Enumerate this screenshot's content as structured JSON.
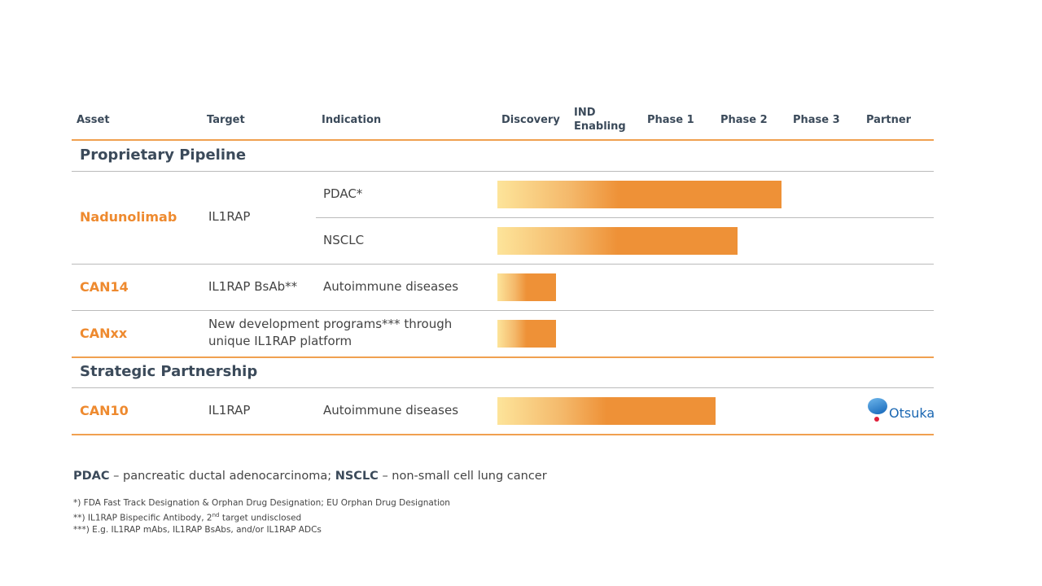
{
  "header": {
    "columns": [
      "Asset",
      "Target",
      "Indication",
      "Discovery",
      "IND Enabling",
      "Phase 1",
      "Phase 2",
      "Phase 3",
      "Partner"
    ]
  },
  "sections": [
    {
      "title": "Proprietary Pipeline",
      "rows": [
        {
          "asset": "Nadunolimab",
          "target": "IL1RAP",
          "indications": [
            {
              "name": "PDAC*",
              "progress": 3.9
            },
            {
              "name": "NSCLC",
              "progress": 3.3
            }
          ]
        },
        {
          "asset": "CAN14",
          "target": "IL1RAP BsAb**",
          "indications": [
            {
              "name": "Autoimmune diseases",
              "progress": 0.8
            }
          ]
        },
        {
          "asset": "CANxx",
          "description": "New development programs*** through unique IL1RAP platform",
          "indications": [
            {
              "progress": 0.8
            }
          ]
        }
      ]
    },
    {
      "title": "Strategic Partnership",
      "rows": [
        {
          "asset": "CAN10",
          "target": "IL1RAP",
          "indications": [
            {
              "name": "Autoimmune diseases",
              "progress": 3.0
            }
          ],
          "partner": "Otsuka"
        }
      ]
    }
  ],
  "abbreviations": [
    {
      "term": "PDAC",
      "definition": "– pancreatic ductal adenocarcinoma;"
    },
    {
      "term": "NSCLC",
      "definition": "– non-small cell lung cancer"
    }
  ],
  "footnotes": [
    [
      "*) FDA Fast Track Designation & Orphan Drug Designation; EU Orphan Drug Designation"
    ],
    [
      "**) IL1RAP Bispecific Antibody, 2",
      "nd",
      " target undisclosed"
    ],
    [
      "***) E.g. IL1RAP mAbs, IL1RAP BsAbs, and/or IL1RAP ADCs"
    ]
  ]
}
